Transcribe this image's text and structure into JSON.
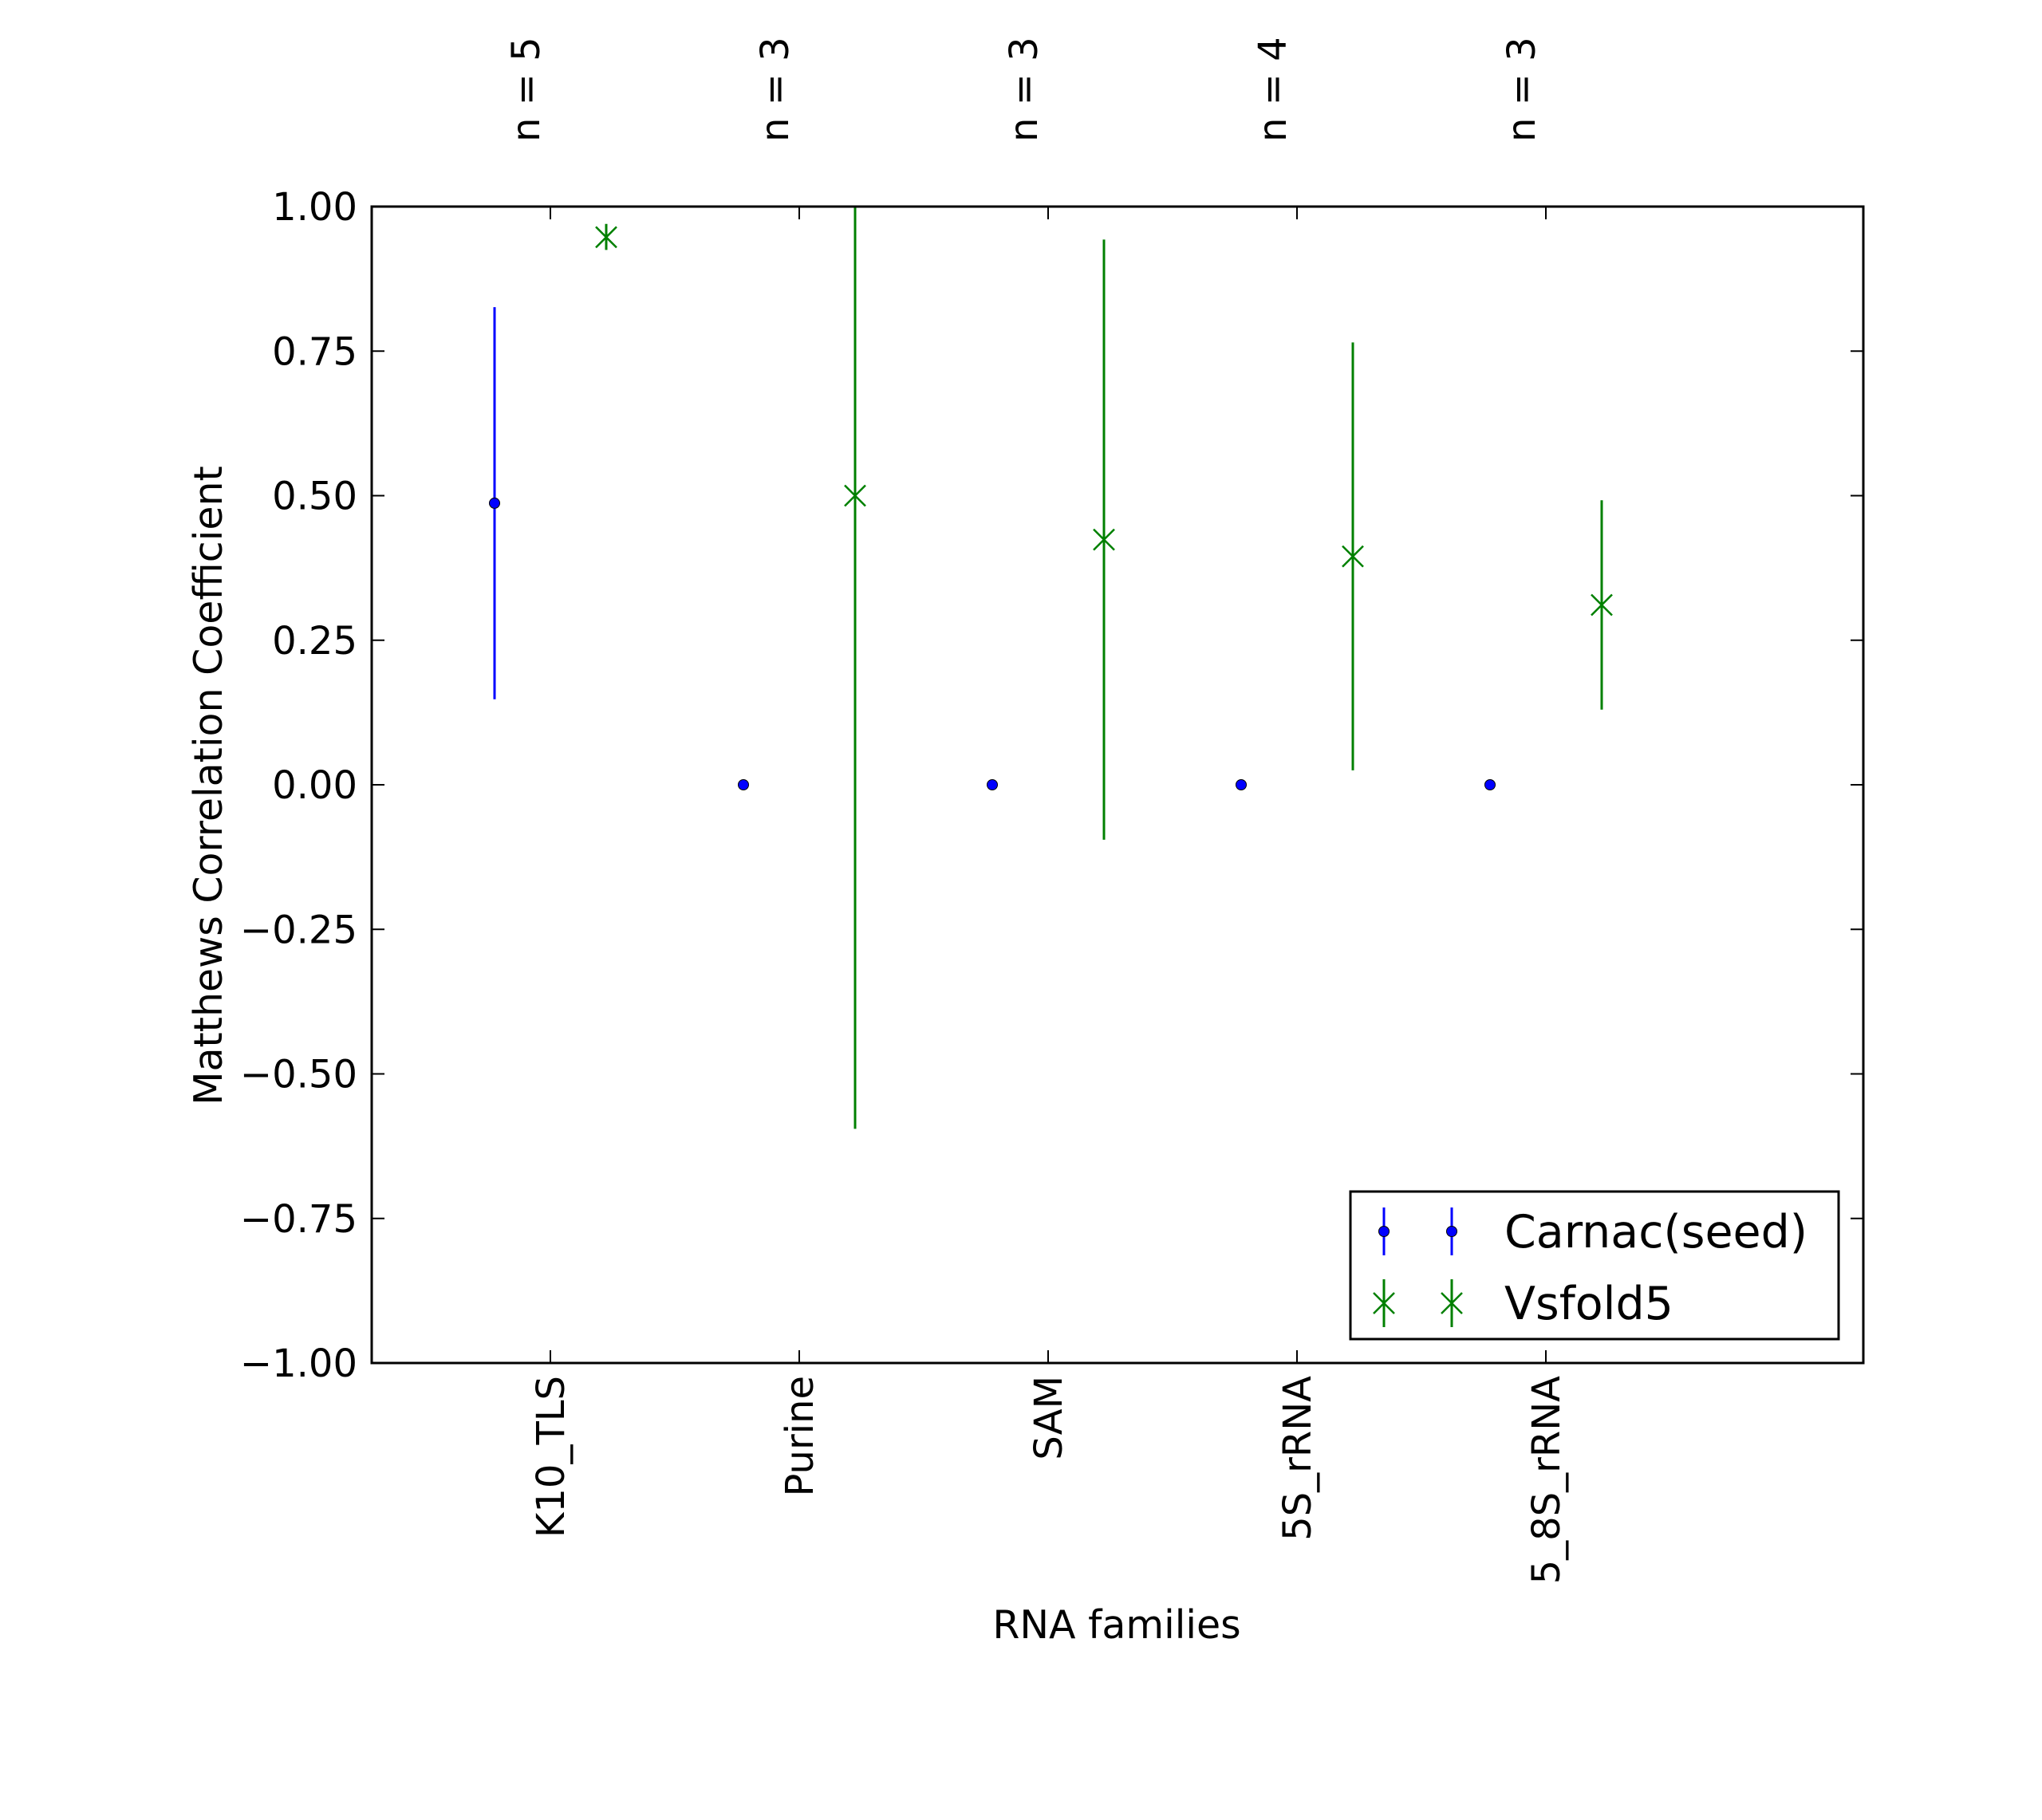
{
  "chart_data": {
    "type": "scatter",
    "xlabel": "RNA families",
    "ylabel": "Matthews Correlation Coefficient",
    "categories": [
      "K10_TLS",
      "Purine",
      "SAM",
      "5S_rRNA",
      "5_8S_rRNA"
    ],
    "counts": [
      "n = 5",
      "n = 3",
      "n = 3",
      "n = 4",
      "n = 3"
    ],
    "ylim": [
      -1.0,
      1.0
    ],
    "yticks": [
      "1.00",
      "0.75",
      "0.50",
      "0.25",
      "0.00",
      "−0.25",
      "−0.50",
      "−0.75",
      "−1.00"
    ],
    "ytick_values": [
      1.0,
      0.75,
      0.5,
      0.25,
      0.0,
      -0.25,
      -0.5,
      -0.75,
      -1.0
    ],
    "grid": false,
    "legend_position": "lower-right",
    "series": [
      {
        "name": "Carnac(seed)",
        "color": "#0000ff",
        "marker": "dot",
        "values": [
          0.487,
          0.0,
          0.0,
          0.0,
          0.0
        ],
        "err_low": [
          0.148,
          0.0,
          0.0,
          0.0,
          0.0
        ],
        "err_high": [
          0.826,
          0.0,
          0.0,
          0.0,
          0.0
        ]
      },
      {
        "name": "Vsfold5",
        "color": "#008000",
        "marker": "x",
        "values": [
          0.947,
          0.5,
          0.424,
          0.395,
          0.311
        ],
        "err_low": [
          0.925,
          -0.595,
          -0.095,
          0.025,
          0.13
        ],
        "err_high": [
          0.97,
          1.0,
          0.943,
          0.765,
          0.492
        ]
      }
    ]
  }
}
